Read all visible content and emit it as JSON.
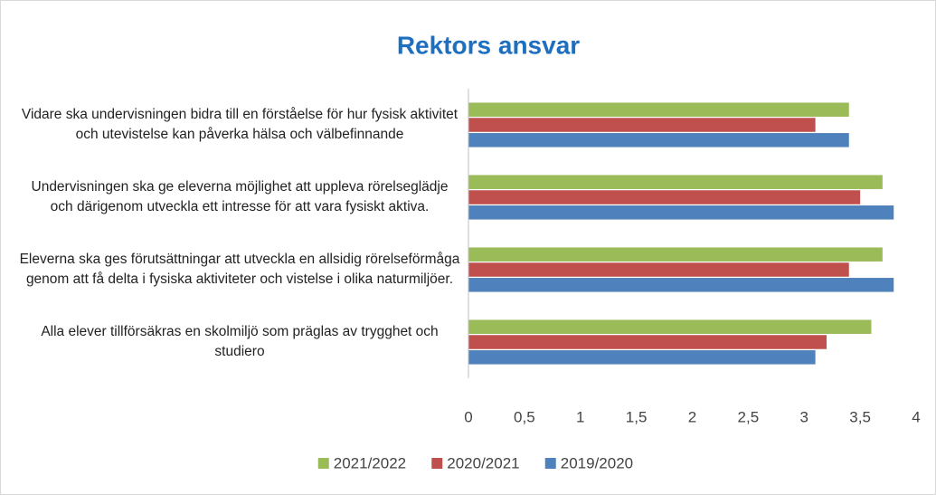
{
  "chart_data": {
    "type": "hbar",
    "title": "Rektors ansvar",
    "categories": [
      "Vidare ska undervisningen bidra till en förståelse för hur fysisk aktivitet och utevistelse kan påverka hälsa och välbefinnande",
      "Undervisningen ska ge eleverna möjlighet att uppleva rörelseglädje och därigenom utveckla ett intresse för att vara fysiskt aktiva.",
      "Eleverna ska ges förutsättningar att utveckla en allsidig rörelseförmåga genom att få delta i fysiska aktiviteter och vistelse i olika naturmiljöer.",
      "Alla elever tillförsäkras en skolmiljö som präglas av trygghet och studiero"
    ],
    "series": [
      {
        "name": "2021/2022",
        "color": "#9bbb59",
        "values": [
          3.4,
          3.7,
          3.7,
          3.6
        ]
      },
      {
        "name": "2020/2021",
        "color": "#c0504d",
        "values": [
          3.1,
          3.5,
          3.4,
          3.2
        ]
      },
      {
        "name": "2019/2020",
        "color": "#4f81bd",
        "values": [
          3.4,
          3.8,
          3.8,
          3.1
        ]
      }
    ],
    "xlim": [
      0,
      4
    ],
    "xticks": [
      0,
      {
        "value": 0.5,
        "label": "0,5"
      },
      1,
      {
        "value": 1.5,
        "label": "1,5"
      },
      2,
      {
        "value": 2.5,
        "label": "2,5"
      },
      3,
      {
        "value": 3.5,
        "label": "3,5"
      },
      4
    ],
    "legend": "bottom",
    "grid": false
  }
}
